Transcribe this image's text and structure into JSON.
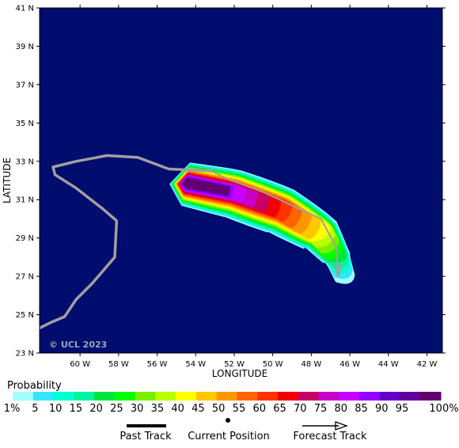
{
  "map": {
    "copyright": "© UCL 2023",
    "background_color": "#000c6e",
    "x_axis_title": "LONGITUDE",
    "y_axis_title": "LATITUDE",
    "lat_ticks": [
      "41 N",
      "39 N",
      "37 N",
      "35 N",
      "33 N",
      "31 N",
      "29 N",
      "27 N",
      "25 N",
      "23 N"
    ],
    "lon_ticks": [
      "60 W",
      "58 W",
      "56 W",
      "54 W",
      "52 W",
      "50 W",
      "48 W",
      "46 W",
      "44 W",
      "42 W"
    ],
    "lat_range": [
      23,
      41
    ],
    "lon_range": [
      -62.1,
      -41.2
    ]
  },
  "chart_data": {
    "type": "heatmap",
    "title": "",
    "xlabel": "LONGITUDE",
    "ylabel": "LATITUDE",
    "xlim": [
      -62.1,
      -41.2
    ],
    "ylim": [
      23,
      41
    ],
    "probability_field": {
      "description_levels_percent": [
        1,
        5,
        10,
        15,
        20,
        25,
        30,
        35,
        40,
        45,
        50,
        55,
        60,
        65,
        70,
        75,
        80,
        85,
        90,
        95,
        100
      ],
      "axis_points": [
        {
          "lon": -54.5,
          "lat": 31.9
        },
        {
          "lon": -52.0,
          "lat": 31.4
        },
        {
          "lon": -49.5,
          "lat": 30.5
        },
        {
          "lon": -47.5,
          "lat": 29.3
        },
        {
          "lon": -46.6,
          "lat": 28.0
        },
        {
          "lon": -46.2,
          "lat": 26.9
        }
      ],
      "peak_lon": -53.8,
      "peak_lat": 31.8
    },
    "past_track": [
      [
        -62.1,
        24.3
      ],
      [
        -61.5,
        24.6
      ],
      [
        -60.8,
        24.9
      ],
      [
        -60.2,
        25.8
      ],
      [
        -59.4,
        26.6
      ],
      [
        -58.2,
        28.0
      ],
      [
        -58.1,
        29.9
      ],
      [
        -58.8,
        30.5
      ],
      [
        -60.2,
        31.6
      ],
      [
        -61.3,
        32.3
      ],
      [
        -61.4,
        32.7
      ],
      [
        -60.2,
        33.0
      ],
      [
        -58.6,
        33.3
      ],
      [
        -57.0,
        33.2
      ],
      [
        -55.4,
        32.6
      ],
      [
        -53.2,
        32.5
      ]
    ],
    "current_position": [
      -53.2,
      32.5
    ],
    "forecast_track": [
      [
        -53.2,
        32.5
      ],
      [
        -52.4,
        32.1
      ],
      [
        -50.5,
        31.4
      ],
      [
        -48.8,
        30.6
      ],
      [
        -47.5,
        30.0
      ],
      [
        -46.7,
        28.5
      ],
      [
        -46.6,
        27.0
      ]
    ]
  },
  "legend": {
    "title": "Probability",
    "colors": [
      "#a0ffff",
      "#32e6ff",
      "#00ffd2",
      "#00f5a0",
      "#00e63c",
      "#00ff00",
      "#78f000",
      "#b9ff00",
      "#ffff00",
      "#ffc800",
      "#ff9600",
      "#ff6400",
      "#ff3200",
      "#f00000",
      "#c80064",
      "#c800c8",
      "#c800ff",
      "#9600ff",
      "#6400c8",
      "#64009b",
      "#64006e"
    ],
    "labels": [
      "1%",
      "5",
      "10",
      "15",
      "20",
      "25",
      "30",
      "35",
      "40",
      "45",
      "50",
      "55",
      "60",
      "65",
      "70",
      "75",
      "80",
      "85",
      "90",
      "95",
      "100%"
    ],
    "past_track_label": "Past Track",
    "current_position_label": "Current Position",
    "forecast_track_label": "Forecast Track"
  }
}
